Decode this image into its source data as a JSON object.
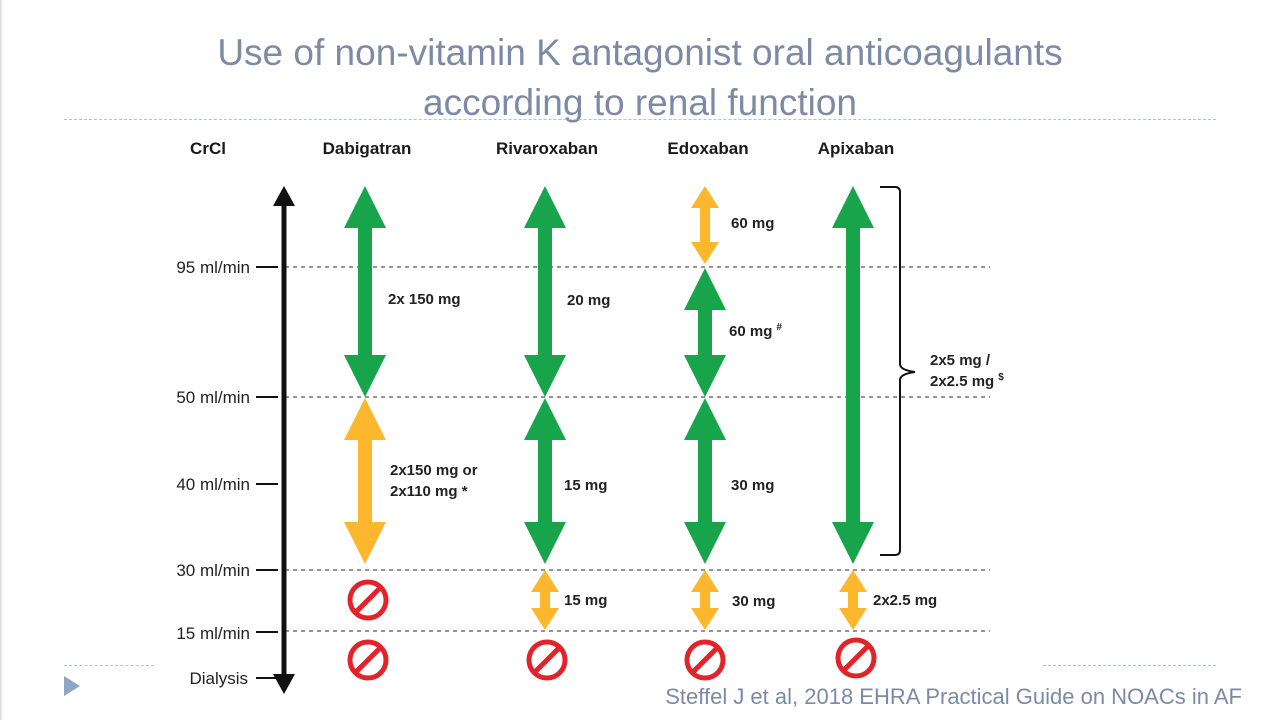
{
  "slide": {
    "title_line1": "Use of non-vitamin K antagonist oral anticoagulants",
    "title_line2": "according to renal function",
    "citation": "Steffel J et al, 2018 EHRA Practical Guide on NOACs in AF"
  },
  "diagram": {
    "axis_label": "CrCl",
    "colors": {
      "green": "#17a44a",
      "amber": "#fcb72d",
      "red": "#e2232a",
      "axis": "#111111",
      "dashed": "#555555"
    },
    "thresholds": [
      {
        "id": "t95",
        "label": "95 ml/min"
      },
      {
        "id": "t50",
        "label": "50 ml/min"
      },
      {
        "id": "t40",
        "label": "40 ml/min"
      },
      {
        "id": "t30",
        "label": "30 ml/min"
      },
      {
        "id": "t15",
        "label": "15 ml/min"
      },
      {
        "id": "dialysis",
        "label": "Dialysis"
      }
    ],
    "drugs": [
      {
        "name": "Dabigatran",
        "segments": [
          {
            "from": "top",
            "to": "t50",
            "color": "green",
            "dose": "2x 150 mg",
            "dose_line2": ""
          },
          {
            "from": "t50",
            "to": "t30",
            "color": "amber",
            "dose": "2x150 mg or",
            "dose_line2": "2x110 mg *"
          }
        ],
        "contraindicated": [
          "t30-t15",
          "t15-dialysis"
        ]
      },
      {
        "name": "Rivaroxaban",
        "segments": [
          {
            "from": "top",
            "to": "t50",
            "color": "green",
            "dose": "20 mg",
            "dose_line2": ""
          },
          {
            "from": "t50",
            "to": "t30",
            "color": "green",
            "dose": "15 mg",
            "dose_line2": ""
          },
          {
            "from": "t30",
            "to": "t15",
            "color": "amber",
            "dose": "15 mg",
            "dose_line2": ""
          }
        ],
        "contraindicated": [
          "t15-dialysis"
        ]
      },
      {
        "name": "Edoxaban",
        "segments": [
          {
            "from": "top",
            "to": "t95",
            "color": "amber",
            "dose": "60 mg",
            "dose_line2": ""
          },
          {
            "from": "t95",
            "to": "t50",
            "color": "green",
            "dose": "60 mg",
            "dose_sup": "#",
            "dose_line2": ""
          },
          {
            "from": "t50",
            "to": "t30",
            "color": "green",
            "dose": "30 mg",
            "dose_line2": ""
          },
          {
            "from": "t30",
            "to": "t15",
            "color": "amber",
            "dose": "30 mg",
            "dose_line2": ""
          }
        ],
        "contraindicated": [
          "t15-dialysis"
        ]
      },
      {
        "name": "Apixaban",
        "segments": [
          {
            "from": "top",
            "to": "t30",
            "color": "green",
            "dose": "",
            "dose_line2": ""
          },
          {
            "from": "t30",
            "to": "t15",
            "color": "amber",
            "dose": "2x2.5 mg",
            "dose_line2": ""
          }
        ],
        "bracket_dose_line1": "2x5 mg /",
        "bracket_dose_line2": "2x2.5 mg",
        "bracket_dose_sup": "$",
        "contraindicated": [
          "t15-dialysis"
        ]
      }
    ]
  }
}
